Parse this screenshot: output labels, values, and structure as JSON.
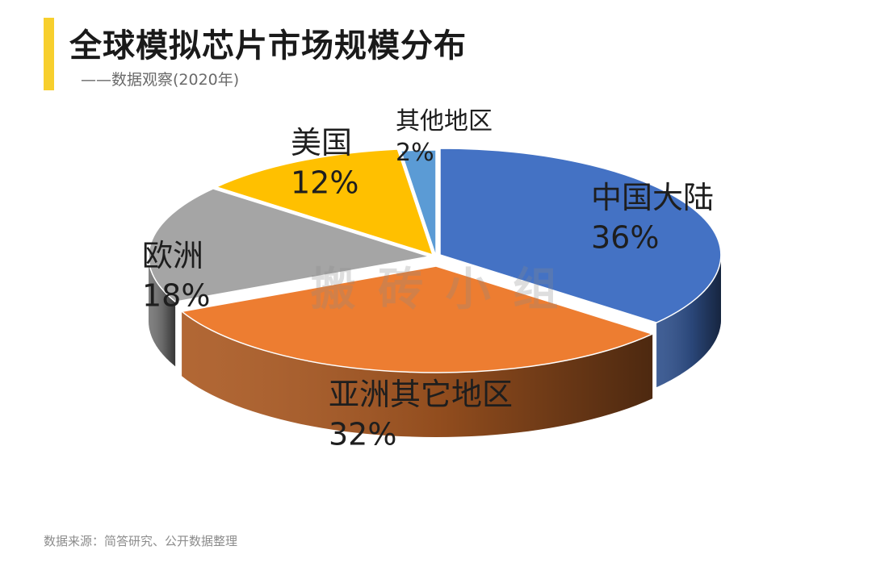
{
  "header": {
    "title": "全球模拟芯片市场规模分布",
    "subtitle": "——数据观察(2020年)"
  },
  "footer": {
    "source": "数据来源：简答研究、公开数据整理"
  },
  "watermark": "搬 砖 小 组",
  "colors": {
    "accent": "#f7cf2d",
    "china": "#4472c4",
    "asia_other": "#ed7d31",
    "europe": "#a5a5a5",
    "usa": "#ffc000",
    "other": "#5b9bd5"
  },
  "chart_data": {
    "type": "pie",
    "style": "3d-exploded",
    "title": "全球模拟芯片市场规模分布",
    "slices": [
      {
        "name": "中国大陆",
        "value": 36,
        "label": "36%",
        "color": "#4472c4"
      },
      {
        "name": "亚洲其它地区",
        "value": 32,
        "label": "32%",
        "color": "#ed7d31"
      },
      {
        "name": "欧洲",
        "value": 18,
        "label": "18%",
        "color": "#a5a5a5"
      },
      {
        "name": "美国",
        "value": 12,
        "label": "12%",
        "color": "#ffc000"
      },
      {
        "name": "其他地区",
        "value": 2,
        "label": "2%",
        "color": "#5b9bd5"
      }
    ]
  }
}
